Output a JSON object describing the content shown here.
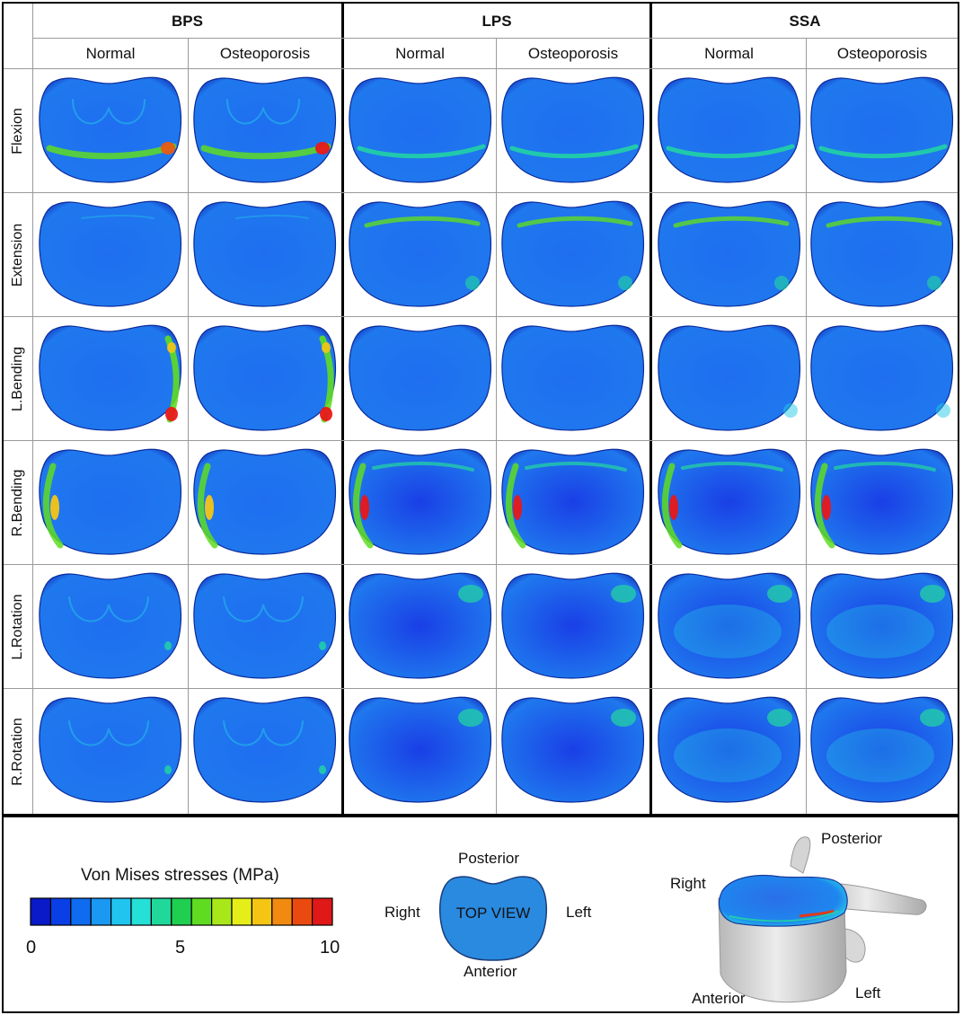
{
  "groups": [
    "BPS",
    "LPS",
    "SSA"
  ],
  "columns": [
    "Normal",
    "Osteoporosis",
    "Normal",
    "Osteoporosis",
    "Normal",
    "Osteoporosis"
  ],
  "rows": [
    "Flexion",
    "Extension",
    "L.Bending",
    "R.Bending",
    "L.Rotation",
    "R.Rotation"
  ],
  "legend": {
    "title": "Von Mises stresses (MPa)",
    "tick_min": "0",
    "tick_mid": "5",
    "tick_max": "10",
    "colors": [
      "#0a1ac8",
      "#0a3fe6",
      "#0f6cf0",
      "#1a98f2",
      "#20c4ef",
      "#25e0d6",
      "#1fd89a",
      "#1fcf4f",
      "#5fdc22",
      "#a8e81a",
      "#e6ee1a",
      "#f5c514",
      "#f18a10",
      "#ea4a10",
      "#e01818"
    ]
  },
  "top_view": {
    "label": "TOP VIEW",
    "posterior": "Posterior",
    "anterior": "Anterior",
    "right": "Right",
    "left": "Left",
    "fill_color": "#2a8ae0"
  },
  "model_view": {
    "posterior": "Posterior",
    "anterior": "Anterior",
    "right": "Right",
    "left": "Left"
  },
  "colors": {
    "base_blue": "#1f6ef0",
    "border_blue": "#0a2a9a",
    "bone_gray": "#cfcfcf"
  }
}
